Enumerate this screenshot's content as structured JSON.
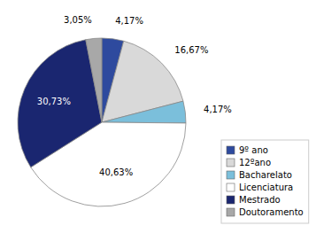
{
  "chart_data": {
    "type": "pie",
    "categories": [
      "9º ano",
      "12ºano",
      "Bacharelato",
      "Licenciatura",
      "Mestrado",
      "Doutoramento"
    ],
    "values": [
      4.17,
      16.67,
      4.17,
      40.63,
      30.73,
      3.05
    ],
    "value_labels": [
      "4,17%",
      "16,67%",
      "4,17%",
      "40,63%",
      "30,73%",
      "3,05%"
    ],
    "colors": [
      "#2e4a9e",
      "#d9d9d9",
      "#7bbfdb",
      "#ffffff",
      "#1a2670",
      "#a8a8a8"
    ],
    "data_labels": true,
    "legend": "right"
  }
}
